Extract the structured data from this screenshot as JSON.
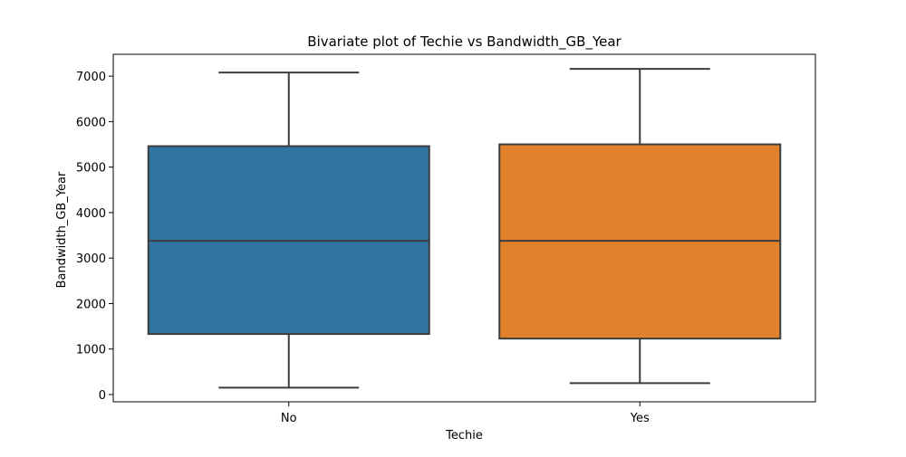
{
  "chart_data": {
    "type": "boxplot",
    "title": "Bivariate plot of Techie vs Bandwidth_GB_Year",
    "xlabel": "Techie",
    "ylabel": "Bandwidth_GB_Year",
    "ylim": [
      -160,
      7480
    ],
    "yticks": [
      0,
      1000,
      2000,
      3000,
      4000,
      5000,
      6000,
      7000
    ],
    "categories": [
      "No",
      "Yes"
    ],
    "boxes": [
      {
        "category": "No",
        "whisker_low": 150,
        "q1": 1330,
        "median": 3380,
        "q3": 5460,
        "whisker_high": 7080,
        "color": "#3274a1"
      },
      {
        "category": "Yes",
        "whisker_low": 250,
        "q1": 1230,
        "median": 3380,
        "q3": 5500,
        "whisker_high": 7160,
        "color": "#e1812c"
      }
    ],
    "line_color": "#3d3d3d",
    "grid": false,
    "legend": "none"
  }
}
